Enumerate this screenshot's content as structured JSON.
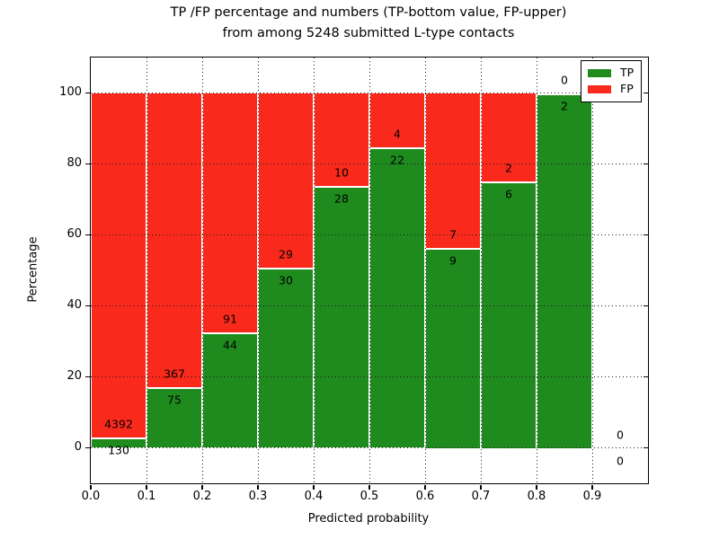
{
  "chart_data": {
    "type": "bar",
    "stacked": true,
    "normalized_to_percent": true,
    "title_line1": "TP /FP percentage and numbers (TP-bottom value, FP-upper)",
    "title_line2": "from among 5248 submitted L-type contacts",
    "xlabel": "Predicted probability",
    "ylabel": "Percentage",
    "bin_width": 0.1,
    "categories": [
      "0.0",
      "0.1",
      "0.2",
      "0.3",
      "0.4",
      "0.5",
      "0.6",
      "0.7",
      "0.8",
      "0.9"
    ],
    "series": [
      {
        "name": "TP",
        "color": "#1f8b1f",
        "values": [
          130,
          75,
          44,
          30,
          28,
          22,
          9,
          6,
          2,
          0
        ]
      },
      {
        "name": "FP",
        "color": "#f92a1c",
        "values": [
          4392,
          367,
          91,
          29,
          10,
          4,
          7,
          2,
          0,
          0
        ]
      }
    ],
    "tp_percent_of_bin": [
      2.9,
      17.0,
      32.6,
      50.8,
      73.7,
      84.6,
      56.3,
      75.0,
      100.0,
      null
    ],
    "yticks": [
      0,
      20,
      40,
      60,
      80,
      100
    ],
    "ylim": [
      -10,
      110
    ],
    "xlim": [
      0,
      1
    ],
    "grid": true,
    "grid_linestyle": "dotted",
    "legend": {
      "position": "upper right",
      "entries": [
        "TP",
        "FP"
      ]
    }
  }
}
